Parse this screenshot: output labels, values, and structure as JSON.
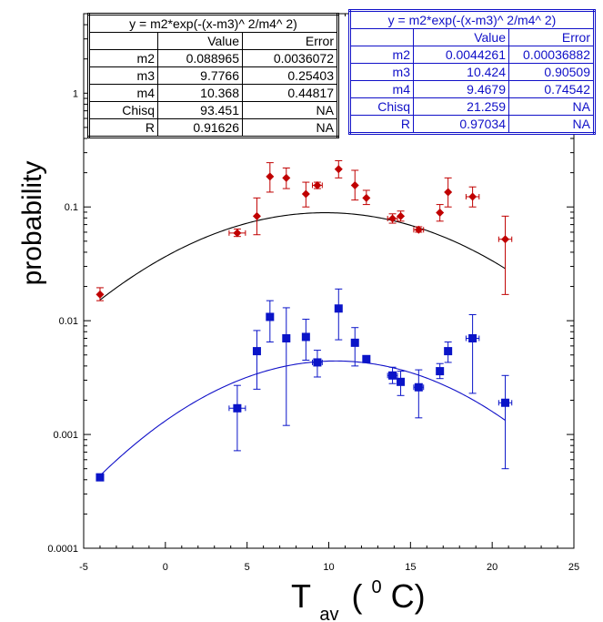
{
  "chart_data": {
    "type": "scatter",
    "title": "",
    "xlabel": "T",
    "xlabel_subscript": "av",
    "xlabel_superscript": "0",
    "xlabel_unit_open": "(",
    "xlabel_unit_close": "C)",
    "ylabel": "probability",
    "xlim": [
      -5,
      25
    ],
    "ylim": [
      0.0001,
      5
    ],
    "yscale": "log",
    "grid": false,
    "x_ticks": [
      -5,
      0,
      5,
      10,
      15,
      20,
      25
    ],
    "x_tick_labels": [
      "-5",
      "0",
      "5",
      "10",
      "15",
      "20",
      "25"
    ],
    "y_ticks": [
      0.0001,
      0.001,
      0.01,
      0.1,
      1
    ],
    "y_tick_labels": [
      "0.0001",
      "0.001",
      "0.01",
      "0.1",
      "1"
    ],
    "series": [
      {
        "color": "#c00000",
        "marker": "diamond",
        "points": [
          {
            "x": -4.0,
            "y": 0.017,
            "ylo": 0.015,
            "yhi": 0.0195,
            "xerr": 0
          },
          {
            "x": 4.4,
            "y": 0.059,
            "ylo": 0.055,
            "yhi": 0.064,
            "xerr": 0.5
          },
          {
            "x": 5.6,
            "y": 0.083,
            "ylo": 0.057,
            "yhi": 0.12,
            "xerr": 0
          },
          {
            "x": 6.4,
            "y": 0.185,
            "ylo": 0.135,
            "yhi": 0.245,
            "xerr": 0
          },
          {
            "x": 7.4,
            "y": 0.18,
            "ylo": 0.145,
            "yhi": 0.22,
            "xerr": 0
          },
          {
            "x": 8.6,
            "y": 0.13,
            "ylo": 0.1,
            "yhi": 0.165,
            "xerr": 0
          },
          {
            "x": 9.3,
            "y": 0.155,
            "ylo": 0.145,
            "yhi": 0.165,
            "xerr": 0.3
          },
          {
            "x": 10.6,
            "y": 0.215,
            "ylo": 0.18,
            "yhi": 0.255,
            "xerr": 0
          },
          {
            "x": 11.6,
            "y": 0.155,
            "ylo": 0.115,
            "yhi": 0.21,
            "xerr": 0
          },
          {
            "x": 12.3,
            "y": 0.12,
            "ylo": 0.105,
            "yhi": 0.14,
            "xerr": 0
          },
          {
            "x": 13.9,
            "y": 0.079,
            "ylo": 0.072,
            "yhi": 0.087,
            "xerr": 0.3
          },
          {
            "x": 14.4,
            "y": 0.083,
            "ylo": 0.075,
            "yhi": 0.092,
            "xerr": 0
          },
          {
            "x": 15.5,
            "y": 0.063,
            "ylo": 0.06,
            "yhi": 0.067,
            "xerr": 0.3
          },
          {
            "x": 16.8,
            "y": 0.089,
            "ylo": 0.075,
            "yhi": 0.105,
            "xerr": 0
          },
          {
            "x": 17.3,
            "y": 0.135,
            "ylo": 0.1,
            "yhi": 0.18,
            "xerr": 0
          },
          {
            "x": 18.8,
            "y": 0.123,
            "ylo": 0.1,
            "yhi": 0.15,
            "xerr": 0.4
          },
          {
            "x": 20.8,
            "y": 0.052,
            "ylo": 0.017,
            "yhi": 0.083,
            "xerr": 0.4
          }
        ],
        "fit": {
          "m2": 0.088965,
          "m3": 9.7766,
          "m4": 10.368,
          "x_from": -4.0,
          "x_to": 20.8,
          "color": "#000000"
        }
      },
      {
        "color": "#0a14c8",
        "marker": "square",
        "points": [
          {
            "x": -4.0,
            "y": 0.00042,
            "ylo": 0.0004,
            "yhi": 0.00044,
            "xerr": 0
          },
          {
            "x": 4.4,
            "y": 0.0017,
            "ylo": 0.00072,
            "yhi": 0.0027,
            "xerr": 0.5
          },
          {
            "x": 5.6,
            "y": 0.0054,
            "ylo": 0.0025,
            "yhi": 0.0082,
            "xerr": 0
          },
          {
            "x": 6.4,
            "y": 0.0108,
            "ylo": 0.0065,
            "yhi": 0.015,
            "xerr": 0
          },
          {
            "x": 7.4,
            "y": 0.007,
            "ylo": 0.0012,
            "yhi": 0.013,
            "xerr": 0
          },
          {
            "x": 8.6,
            "y": 0.0072,
            "ylo": 0.0045,
            "yhi": 0.0103,
            "xerr": 0
          },
          {
            "x": 9.3,
            "y": 0.0043,
            "ylo": 0.0032,
            "yhi": 0.0055,
            "xerr": 0.3
          },
          {
            "x": 10.6,
            "y": 0.0128,
            "ylo": 0.0068,
            "yhi": 0.019,
            "xerr": 0
          },
          {
            "x": 11.6,
            "y": 0.0064,
            "ylo": 0.004,
            "yhi": 0.0087,
            "xerr": 0
          },
          {
            "x": 12.3,
            "y": 0.0046,
            "ylo": 0.0043,
            "yhi": 0.0049,
            "xerr": 0
          },
          {
            "x": 13.9,
            "y": 0.0033,
            "ylo": 0.0028,
            "yhi": 0.0039,
            "xerr": 0.3
          },
          {
            "x": 14.4,
            "y": 0.0029,
            "ylo": 0.0022,
            "yhi": 0.0036,
            "xerr": 0
          },
          {
            "x": 15.5,
            "y": 0.0026,
            "ylo": 0.0014,
            "yhi": 0.0037,
            "xerr": 0.3
          },
          {
            "x": 16.8,
            "y": 0.0036,
            "ylo": 0.0031,
            "yhi": 0.0042,
            "xerr": 0
          },
          {
            "x": 17.3,
            "y": 0.0054,
            "ylo": 0.0043,
            "yhi": 0.0065,
            "xerr": 0
          },
          {
            "x": 18.8,
            "y": 0.007,
            "ylo": 0.0023,
            "yhi": 0.0113,
            "xerr": 0.4
          },
          {
            "x": 20.8,
            "y": 0.0019,
            "ylo": 0.0005,
            "yhi": 0.0033,
            "xerr": 0.4
          }
        ],
        "fit": {
          "m2": 0.0044261,
          "m3": 10.424,
          "m4": 9.4679,
          "x_from": -4.0,
          "x_to": 20.8,
          "color": "#1010c8"
        }
      }
    ]
  },
  "fit_tables": {
    "red": {
      "equation": "y = m2*exp(-(x-m3)^ 2/m4^ 2)",
      "col_value": "Value",
      "col_error": "Error",
      "rows": [
        {
          "name": "m2",
          "value": "0.088965",
          "error": "0.0036072"
        },
        {
          "name": "m3",
          "value": "9.7766",
          "error": "0.25403"
        },
        {
          "name": "m4",
          "value": "10.368",
          "error": "0.44817"
        },
        {
          "name": "Chisq",
          "value": "93.451",
          "error": "NA"
        },
        {
          "name": "R",
          "value": "0.91626",
          "error": "NA"
        }
      ]
    },
    "blue": {
      "equation": "y = m2*exp(-(x-m3)^ 2/m4^ 2)",
      "col_value": "Value",
      "col_error": "Error",
      "rows": [
        {
          "name": "m2",
          "value": "0.0044261",
          "error": "0.00036882"
        },
        {
          "name": "m3",
          "value": "10.424",
          "error": "0.90509"
        },
        {
          "name": "m4",
          "value": "9.4679",
          "error": "0.74542"
        },
        {
          "name": "Chisq",
          "value": "21.259",
          "error": "NA"
        },
        {
          "name": "R",
          "value": "0.97034",
          "error": "NA"
        }
      ]
    }
  }
}
